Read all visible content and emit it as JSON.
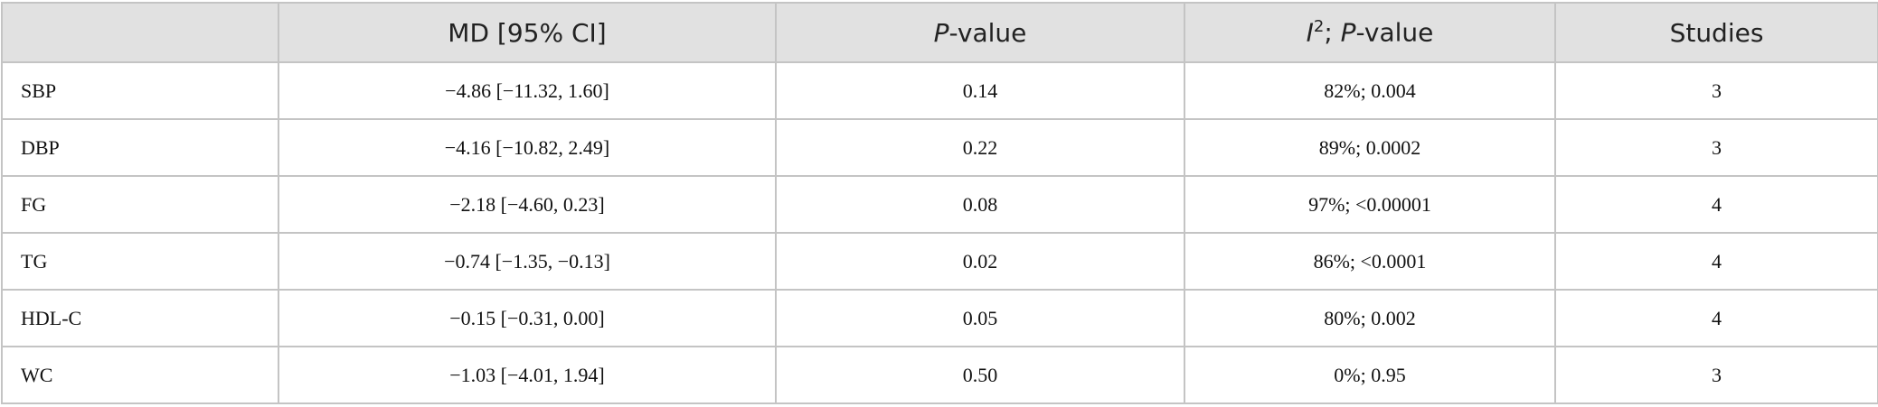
{
  "table": {
    "header": [
      "MD [95% CI]",
      [
        "P",
        "-value"
      ],
      [
        "I",
        "2",
        "; ",
        "P",
        "-value"
      ],
      "Studies"
    ],
    "rows": [
      [
        "SBP",
        "−4.86 [−11.32, 1.60]",
        "0.14",
        "82%; 0.004",
        "3"
      ],
      [
        "DBP",
        "−4.16 [−10.82, 2.49]",
        "0.22",
        "89%; 0.0002",
        "3"
      ],
      [
        "FG",
        "−2.18 [−4.60, 0.23]",
        "0.08",
        "97%; <0.00001",
        "4"
      ],
      [
        "TG",
        "−0.74 [−1.35, −0.13]",
        "0.02",
        "86%; <0.0001",
        "4"
      ],
      [
        "HDL-C",
        "−0.15 [−0.31, 0.00]",
        "0.05",
        "80%; 0.002",
        "4"
      ],
      [
        "WC",
        "−1.03 [−4.01, 1.94]",
        "0.50",
        "0%; 0.95",
        "3"
      ]
    ]
  }
}
